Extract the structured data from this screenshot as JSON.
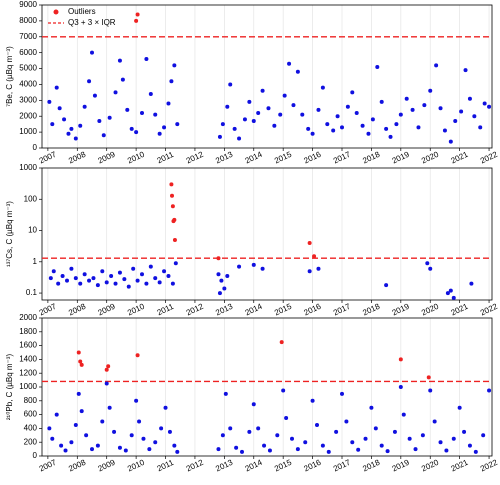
{
  "chart_data": [
    {
      "type": "scatter",
      "ylabel": "⁷Be, C (µBq m⁻³)",
      "legend": "upper left",
      "grid": true,
      "xlim": [
        2006.8,
        2022.1
      ],
      "xticks": [
        2007,
        2008,
        2009,
        2010,
        2011,
        2012,
        2013,
        2014,
        2015,
        2016,
        2017,
        2018,
        2019,
        2020,
        2021,
        2022
      ],
      "ylim": [
        0,
        9000
      ],
      "yticks": [
        0,
        1000,
        2000,
        3000,
        4000,
        5000,
        6000,
        7000,
        8000,
        9000
      ],
      "threshold": {
        "name": "Q3 + 3 × IQR",
        "value": 7000,
        "color": "#ee2222"
      },
      "series": [
        {
          "color": "#1010e0",
          "x": [
            2007.05,
            2007.15,
            2007.3,
            2007.4,
            2007.55,
            2007.7,
            2007.8,
            2007.95,
            2008.1,
            2008.25,
            2008.4,
            2008.5,
            2008.6,
            2008.75,
            2008.9,
            2009.1,
            2009.3,
            2009.45,
            2009.55,
            2009.7,
            2009.85,
            2010.0,
            2010.2,
            2010.35,
            2010.5,
            2010.65,
            2010.8,
            2010.95,
            2011.1,
            2011.2,
            2011.3,
            2011.4,
            2012.85,
            2012.95,
            2013.1,
            2013.2,
            2013.35,
            2013.5,
            2013.7,
            2013.85,
            2014.0,
            2014.15,
            2014.3,
            2014.5,
            2014.7,
            2014.9,
            2015.05,
            2015.2,
            2015.35,
            2015.5,
            2015.65,
            2015.85,
            2016.0,
            2016.2,
            2016.35,
            2016.5,
            2016.7,
            2016.85,
            2017.0,
            2017.2,
            2017.35,
            2017.5,
            2017.7,
            2017.9,
            2018.05,
            2018.2,
            2018.35,
            2018.5,
            2018.65,
            2018.85,
            2019.0,
            2019.2,
            2019.4,
            2019.6,
            2019.8,
            2020.0,
            2020.2,
            2020.35,
            2020.5,
            2020.7,
            2020.85,
            2021.05,
            2021.2,
            2021.35,
            2021.5,
            2021.7,
            2021.85,
            2022.0
          ],
          "values": [
            2900,
            1500,
            3800,
            2500,
            1800,
            900,
            1200,
            600,
            1400,
            2600,
            4200,
            6000,
            3300,
            1700,
            800,
            1900,
            3500,
            5500,
            4300,
            2400,
            1200,
            1000,
            2200,
            5600,
            3400,
            2100,
            900,
            1300,
            2800,
            4200,
            5200,
            1500,
            700,
            1500,
            2600,
            4000,
            1200,
            600,
            1800,
            2900,
            1700,
            2200,
            3600,
            2500,
            1400,
            2100,
            3300,
            5300,
            2700,
            4800,
            2100,
            1200,
            900,
            2400,
            3800,
            1500,
            1100,
            2000,
            1300,
            2600,
            3500,
            2200,
            1400,
            900,
            1800,
            5100,
            2900,
            1200,
            700,
            1500,
            2100,
            3100,
            2400,
            1300,
            2700,
            3600,
            5200,
            2500,
            1100,
            400,
            1700,
            2300,
            4900,
            3100,
            2000,
            1300,
            2800,
            2600
          ]
        },
        {
          "name": "Outliers",
          "color": "#ee2222",
          "x": [
            2010.0,
            2010.05
          ],
          "values": [
            8000,
            8400
          ]
        }
      ]
    },
    {
      "type": "scatter",
      "ylabel": "¹³⁷Cs, C (µBq m⁻³)",
      "ylog": true,
      "grid": true,
      "xlim": [
        2006.8,
        2022.1
      ],
      "xticks": [
        2007,
        2008,
        2009,
        2010,
        2011,
        2012,
        2013,
        2014,
        2015,
        2016,
        2017,
        2018,
        2019,
        2020,
        2021,
        2022
      ],
      "ylim": [
        0.06,
        1000
      ],
      "yticks": [
        0.1,
        1,
        10,
        100,
        1000
      ],
      "threshold": {
        "value": 1.3,
        "color": "#ee2222"
      },
      "series": [
        {
          "color": "#1010e0",
          "x": [
            2007.1,
            2007.2,
            2007.35,
            2007.5,
            2007.65,
            2007.8,
            2007.95,
            2008.1,
            2008.25,
            2008.4,
            2008.55,
            2008.7,
            2008.85,
            2009.0,
            2009.15,
            2009.3,
            2009.45,
            2009.6,
            2009.75,
            2009.9,
            2010.05,
            2010.2,
            2010.35,
            2010.5,
            2010.65,
            2010.8,
            2010.95,
            2011.1,
            2011.25,
            2011.35,
            2012.8,
            2012.85,
            2012.9,
            2013.0,
            2013.1,
            2013.5,
            2014.0,
            2014.3,
            2015.9,
            2016.2,
            2018.5,
            2019.9,
            2020.0,
            2020.6,
            2020.7,
            2020.8,
            2021.4
          ],
          "values": [
            0.3,
            0.5,
            0.2,
            0.35,
            0.25,
            0.6,
            0.3,
            0.2,
            0.4,
            0.25,
            0.3,
            0.18,
            0.5,
            0.22,
            0.35,
            0.2,
            0.45,
            0.28,
            0.16,
            0.6,
            0.25,
            0.4,
            0.2,
            0.7,
            0.3,
            0.22,
            0.5,
            0.35,
            0.2,
            0.9,
            0.4,
            0.1,
            0.25,
            0.14,
            0.35,
            0.7,
            0.8,
            0.6,
            0.5,
            0.6,
            0.18,
            0.9,
            0.6,
            0.1,
            0.12,
            0.07,
            0.2
          ]
        },
        {
          "color": "#ee2222",
          "x": [
            2011.2,
            2011.22,
            2011.25,
            2011.27,
            2011.3,
            2011.32,
            2012.8,
            2015.9,
            2016.05
          ],
          "values": [
            300,
            130,
            60,
            20,
            22,
            5,
            1.3,
            4,
            1.5
          ]
        }
      ]
    },
    {
      "type": "scatter",
      "ylabel": "²¹⁰Pb, C (µBq m⁻³)",
      "grid": true,
      "xlim": [
        2006.8,
        2022.1
      ],
      "xticks": [
        2007,
        2008,
        2009,
        2010,
        2011,
        2012,
        2013,
        2014,
        2015,
        2016,
        2017,
        2018,
        2019,
        2020,
        2021,
        2022
      ],
      "ylim": [
        0,
        2000
      ],
      "yticks": [
        0,
        200,
        400,
        600,
        800,
        1000,
        1200,
        1400,
        1600,
        1800,
        2000
      ],
      "threshold": {
        "value": 1080,
        "color": "#ee2222"
      },
      "series": [
        {
          "color": "#1010e0",
          "x": [
            2007.05,
            2007.15,
            2007.3,
            2007.45,
            2007.6,
            2007.8,
            2007.95,
            2008.05,
            2008.15,
            2008.3,
            2008.5,
            2008.7,
            2008.85,
            2009.0,
            2009.1,
            2009.25,
            2009.45,
            2009.65,
            2009.85,
            2010.0,
            2010.1,
            2010.25,
            2010.45,
            2010.65,
            2010.85,
            2011.0,
            2011.15,
            2011.3,
            2011.4,
            2012.8,
            2012.95,
            2013.05,
            2013.2,
            2013.4,
            2013.6,
            2013.85,
            2014.0,
            2014.15,
            2014.35,
            2014.55,
            2014.8,
            2015.0,
            2015.1,
            2015.3,
            2015.5,
            2015.75,
            2016.0,
            2016.15,
            2016.35,
            2016.55,
            2016.8,
            2017.0,
            2017.15,
            2017.35,
            2017.55,
            2017.8,
            2018.0,
            2018.15,
            2018.35,
            2018.55,
            2018.8,
            2019.0,
            2019.1,
            2019.3,
            2019.5,
            2019.75,
            2020.0,
            2020.15,
            2020.35,
            2020.55,
            2020.8,
            2021.0,
            2021.15,
            2021.35,
            2021.55,
            2021.8,
            2022.0
          ],
          "values": [
            400,
            250,
            600,
            150,
            80,
            200,
            450,
            900,
            650,
            300,
            100,
            150,
            500,
            1050,
            700,
            350,
            120,
            80,
            300,
            800,
            500,
            250,
            100,
            200,
            400,
            700,
            350,
            150,
            60,
            100,
            300,
            900,
            400,
            120,
            60,
            350,
            750,
            400,
            150,
            80,
            300,
            950,
            550,
            250,
            100,
            200,
            800,
            450,
            150,
            60,
            350,
            900,
            500,
            200,
            90,
            250,
            700,
            400,
            150,
            70,
            350,
            1000,
            600,
            250,
            100,
            300,
            950,
            500,
            200,
            80,
            250,
            700,
            350,
            150,
            60,
            300,
            950
          ]
        },
        {
          "color": "#ee2222",
          "x": [
            2008.05,
            2008.1,
            2008.15,
            2009.0,
            2009.05,
            2010.05,
            2014.95,
            2019.0,
            2019.95
          ],
          "values": [
            1500,
            1370,
            1320,
            1250,
            1300,
            1460,
            1650,
            1400,
            1140
          ]
        }
      ]
    }
  ]
}
